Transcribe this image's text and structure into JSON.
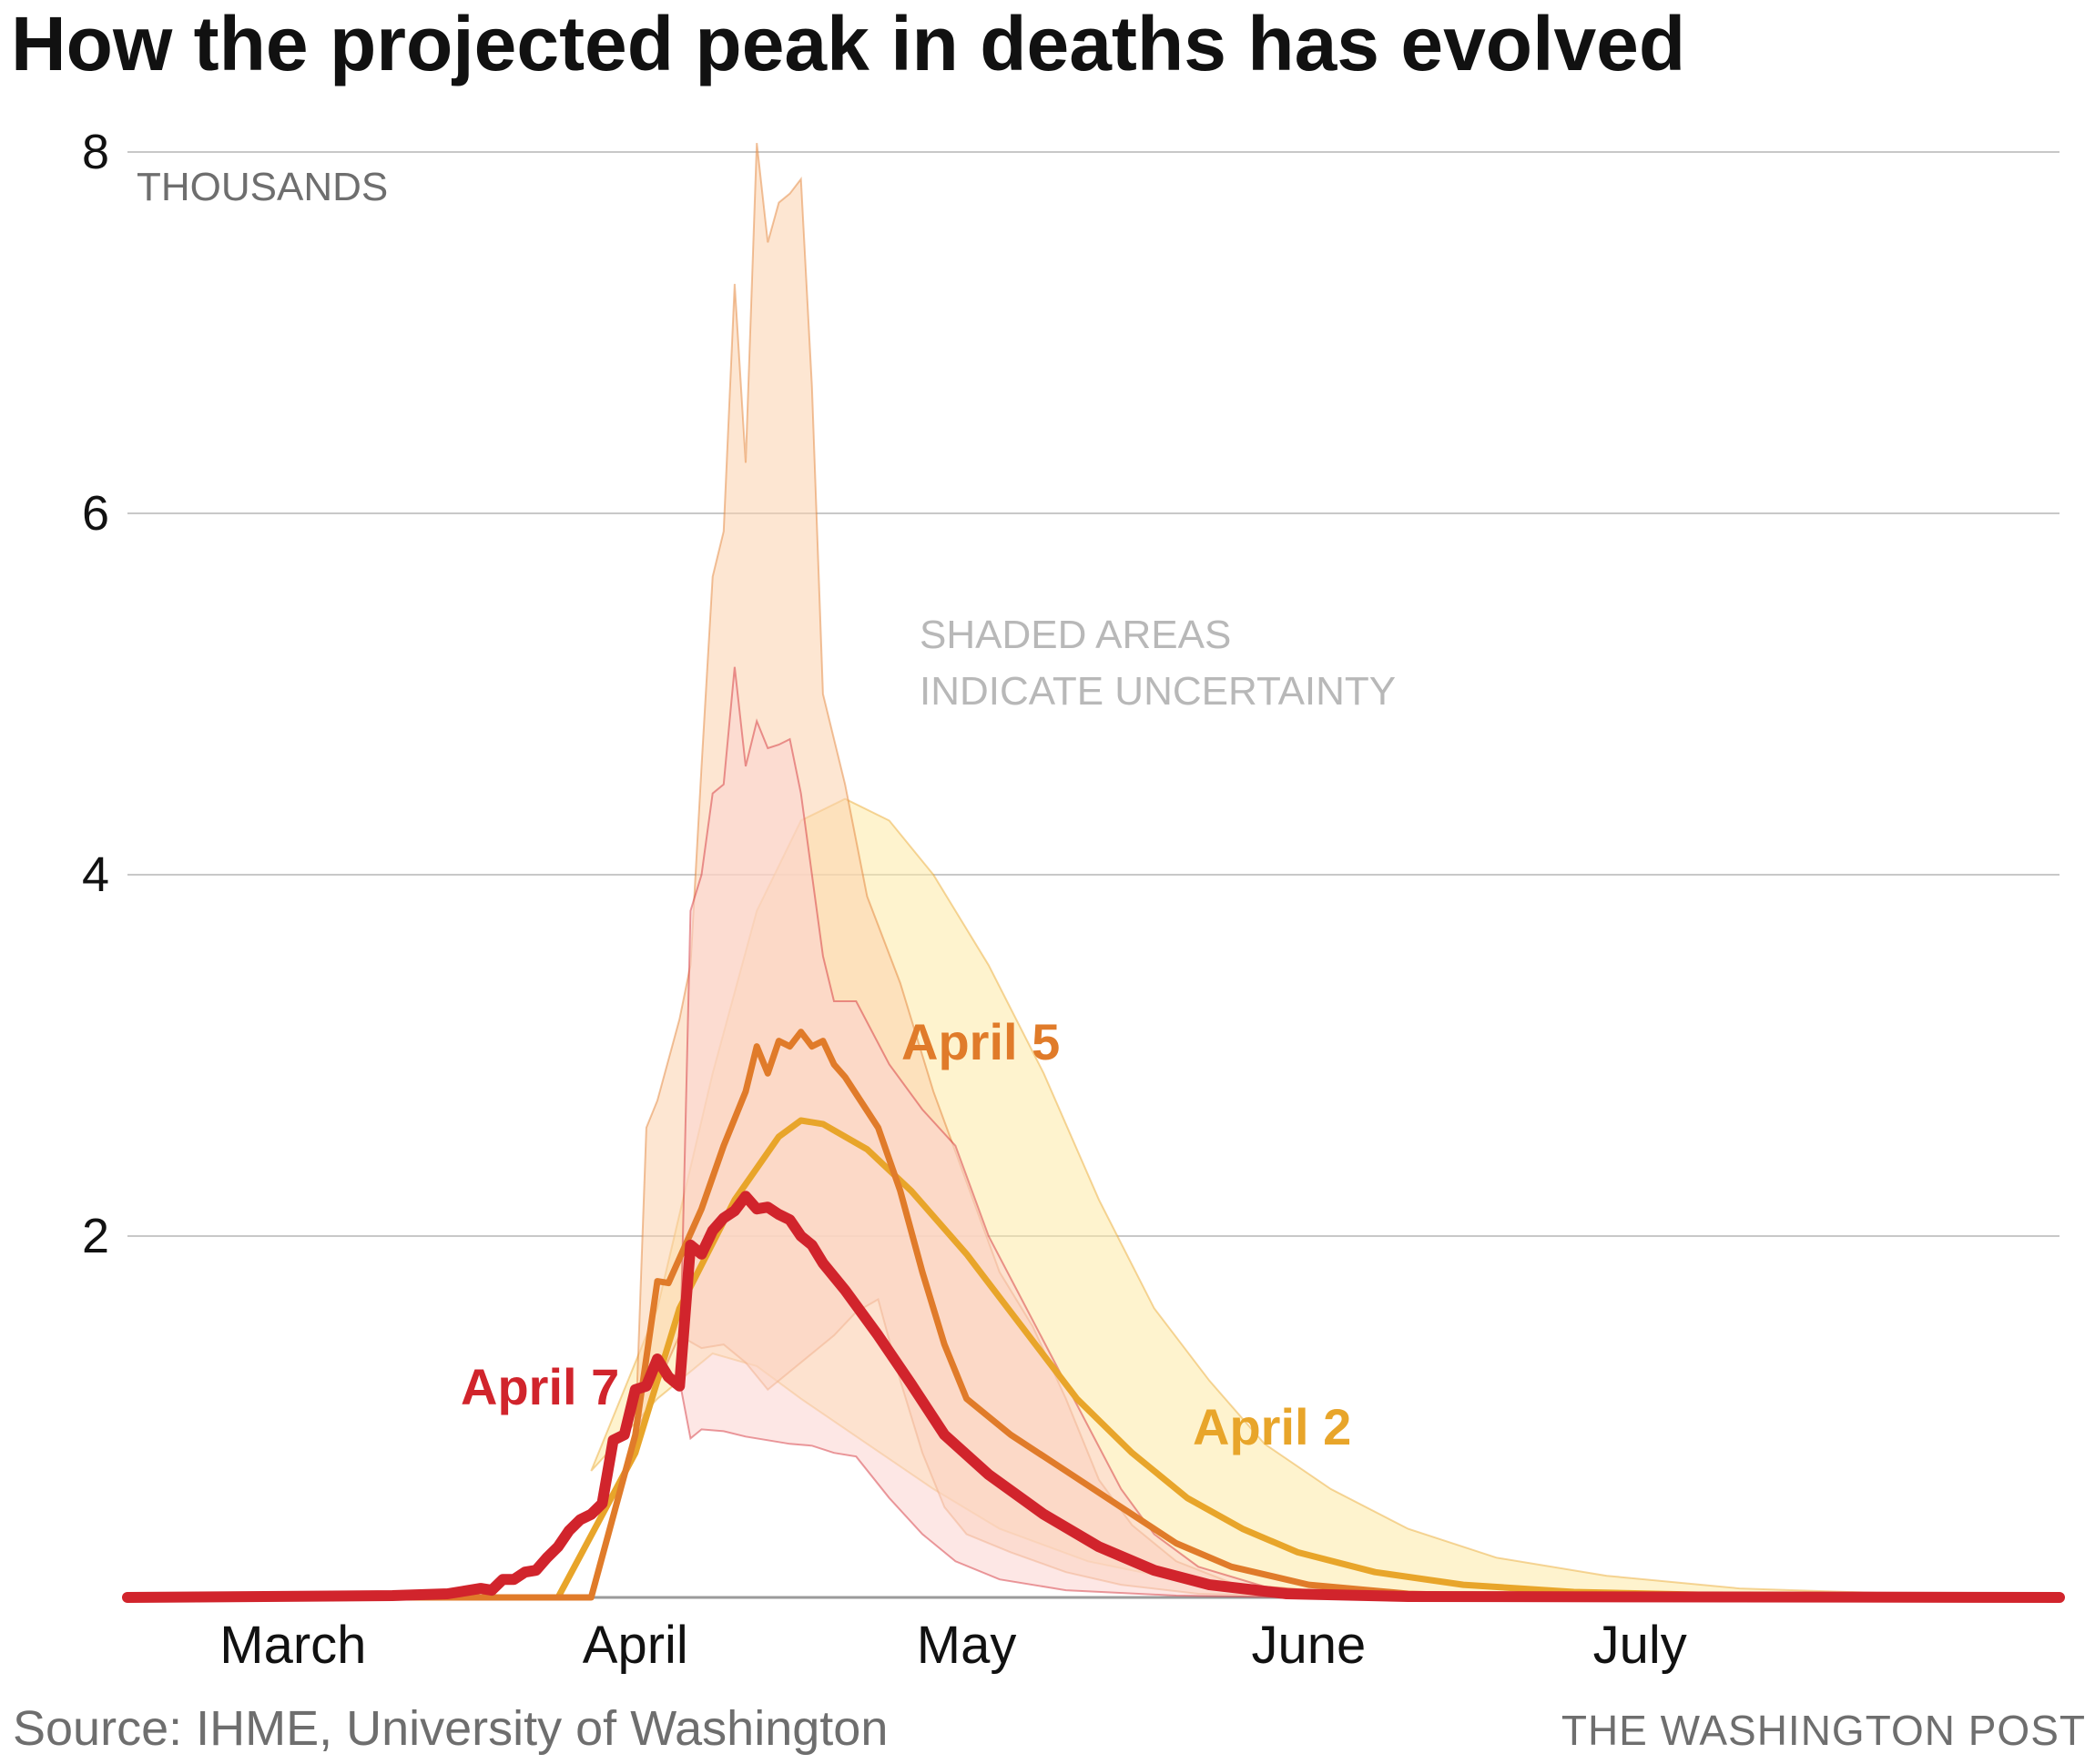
{
  "title": "How the projected peak in deaths has evolved",
  "source": "Source: IHME, University of Washington",
  "credit": "THE WASHINGTON POST",
  "chart_data": {
    "type": "line",
    "title": "How the projected peak in deaths has evolved",
    "unit_label": "THOUSANDS",
    "note_lines": [
      "SHADED AREAS",
      "INDICATE UNCERTAINTY"
    ],
    "x_axis": {
      "start": "2020-02-15",
      "end": "2020-08-08",
      "tick_labels": [
        "March",
        "April",
        "May",
        "June",
        "July"
      ],
      "tick_dates": [
        "2020-03-01",
        "2020-04-01",
        "2020-05-01",
        "2020-06-01",
        "2020-07-01"
      ]
    },
    "y_axis": {
      "ylim": [
        0,
        8
      ],
      "ticks": [
        2,
        4,
        6,
        8
      ],
      "grid": true
    },
    "colors": {
      "april2": "#e8a52a",
      "april5": "#e07b2a",
      "april7": "#d1242c",
      "band_april2": "#fde9a6",
      "band_april5": "#fcd1ad",
      "band_april7": "#fbd3cf",
      "grid": "#c8c8c8",
      "baseline": "#9a9a9a"
    },
    "series": [
      {
        "name": "April 2",
        "color": "#e8a52a",
        "points": [
          [
            "2020-02-15",
            0
          ],
          [
            "2020-03-25",
            0
          ],
          [
            "2020-04-01",
            0.8
          ],
          [
            "2020-04-05",
            1.6
          ],
          [
            "2020-04-10",
            2.2
          ],
          [
            "2020-04-14",
            2.55
          ],
          [
            "2020-04-16",
            2.64
          ],
          [
            "2020-04-18",
            2.62
          ],
          [
            "2020-04-22",
            2.48
          ],
          [
            "2020-04-26",
            2.25
          ],
          [
            "2020-05-01",
            1.9
          ],
          [
            "2020-05-06",
            1.5
          ],
          [
            "2020-05-11",
            1.1
          ],
          [
            "2020-05-16",
            0.8
          ],
          [
            "2020-05-21",
            0.55
          ],
          [
            "2020-05-26",
            0.38
          ],
          [
            "2020-05-31",
            0.25
          ],
          [
            "2020-06-07",
            0.14
          ],
          [
            "2020-06-15",
            0.07
          ],
          [
            "2020-06-25",
            0.03
          ],
          [
            "2020-07-10",
            0.01
          ],
          [
            "2020-08-08",
            0
          ]
        ],
        "band": {
          "upper": [
            [
              "2020-03-28",
              0.7
            ],
            [
              "2020-04-03",
              1.6
            ],
            [
              "2020-04-08",
              2.9
            ],
            [
              "2020-04-12",
              3.8
            ],
            [
              "2020-04-16",
              4.3
            ],
            [
              "2020-04-20",
              4.42
            ],
            [
              "2020-04-24",
              4.3
            ],
            [
              "2020-04-28",
              4.0
            ],
            [
              "2020-05-03",
              3.5
            ],
            [
              "2020-05-08",
              2.9
            ],
            [
              "2020-05-13",
              2.2
            ],
            [
              "2020-05-18",
              1.6
            ],
            [
              "2020-05-23",
              1.2
            ],
            [
              "2020-05-28",
              0.85
            ],
            [
              "2020-06-03",
              0.6
            ],
            [
              "2020-06-10",
              0.38
            ],
            [
              "2020-06-18",
              0.22
            ],
            [
              "2020-06-28",
              0.12
            ],
            [
              "2020-07-10",
              0.05
            ],
            [
              "2020-07-25",
              0.02
            ],
            [
              "2020-08-08",
              0
            ]
          ],
          "lower": [
            [
              "2020-03-28",
              0.7
            ],
            [
              "2020-04-03",
              1.1
            ],
            [
              "2020-04-08",
              1.35
            ],
            [
              "2020-04-12",
              1.28
            ],
            [
              "2020-04-16",
              1.1
            ],
            [
              "2020-04-22",
              0.85
            ],
            [
              "2020-04-28",
              0.6
            ],
            [
              "2020-05-04",
              0.38
            ],
            [
              "2020-05-12",
              0.2
            ],
            [
              "2020-05-20",
              0.1
            ],
            [
              "2020-06-01",
              0.04
            ],
            [
              "2020-06-15",
              0.01
            ],
            [
              "2020-08-08",
              0
            ]
          ]
        }
      },
      {
        "name": "April 5",
        "color": "#e07b2a",
        "points": [
          [
            "2020-02-15",
            0
          ],
          [
            "2020-03-28",
            0
          ],
          [
            "2020-04-01",
            0.9
          ],
          [
            "2020-04-03",
            1.75
          ],
          [
            "2020-04-04",
            1.74
          ],
          [
            "2020-04-07",
            2.15
          ],
          [
            "2020-04-09",
            2.5
          ],
          [
            "2020-04-11",
            2.8
          ],
          [
            "2020-04-12",
            3.05
          ],
          [
            "2020-04-13",
            2.9
          ],
          [
            "2020-04-14",
            3.08
          ],
          [
            "2020-04-15",
            3.05
          ],
          [
            "2020-04-16",
            3.13
          ],
          [
            "2020-04-17",
            3.05
          ],
          [
            "2020-04-18",
            3.08
          ],
          [
            "2020-04-19",
            2.95
          ],
          [
            "2020-04-20",
            2.88
          ],
          [
            "2020-04-23",
            2.6
          ],
          [
            "2020-04-25",
            2.25
          ],
          [
            "2020-04-27",
            1.8
          ],
          [
            "2020-04-29",
            1.4
          ],
          [
            "2020-05-01",
            1.1
          ],
          [
            "2020-05-05",
            0.9
          ],
          [
            "2020-05-10",
            0.7
          ],
          [
            "2020-05-15",
            0.5
          ],
          [
            "2020-05-20",
            0.3
          ],
          [
            "2020-05-25",
            0.17
          ],
          [
            "2020-06-01",
            0.07
          ],
          [
            "2020-06-10",
            0.02
          ],
          [
            "2020-06-20",
            0.005
          ],
          [
            "2020-08-08",
            0
          ]
        ],
        "band": {
          "upper": [
            [
              "2020-04-01",
              0.9
            ],
            [
              "2020-04-02",
              2.6
            ],
            [
              "2020-04-03",
              2.75
            ],
            [
              "2020-04-05",
              3.2
            ],
            [
              "2020-04-06",
              3.5
            ],
            [
              "2020-04-07",
              4.6
            ],
            [
              "2020-04-08",
              5.65
            ],
            [
              "2020-04-09",
              5.9
            ],
            [
              "2020-04-10",
              7.27
            ],
            [
              "2020-04-11",
              6.28
            ],
            [
              "2020-04-12",
              8.05
            ],
            [
              "2020-04-13",
              7.5
            ],
            [
              "2020-04-14",
              7.72
            ],
            [
              "2020-04-15",
              7.77
            ],
            [
              "2020-04-16",
              7.85
            ],
            [
              "2020-04-17",
              6.7
            ],
            [
              "2020-04-18",
              5.0
            ],
            [
              "2020-04-20",
              4.5
            ],
            [
              "2020-04-22",
              3.88
            ],
            [
              "2020-04-25",
              3.4
            ],
            [
              "2020-04-28",
              2.8
            ],
            [
              "2020-05-01",
              2.3
            ],
            [
              "2020-05-04",
              1.8
            ],
            [
              "2020-05-07",
              1.5
            ],
            [
              "2020-05-10",
              1.1
            ],
            [
              "2020-05-13",
              0.65
            ],
            [
              "2020-05-16",
              0.4
            ],
            [
              "2020-05-20",
              0.2
            ],
            [
              "2020-05-25",
              0.08
            ],
            [
              "2020-06-01",
              0.03
            ],
            [
              "2020-06-15",
              0.005
            ],
            [
              "2020-08-08",
              0
            ]
          ],
          "lower": [
            [
              "2020-04-01",
              0.9
            ],
            [
              "2020-04-05",
              1.45
            ],
            [
              "2020-04-07",
              1.38
            ],
            [
              "2020-04-09",
              1.4
            ],
            [
              "2020-04-11",
              1.3
            ],
            [
              "2020-04-13",
              1.15
            ],
            [
              "2020-04-15",
              1.25
            ],
            [
              "2020-04-17",
              1.35
            ],
            [
              "2020-04-19",
              1.45
            ],
            [
              "2020-04-21",
              1.58
            ],
            [
              "2020-04-23",
              1.65
            ],
            [
              "2020-04-25",
              1.2
            ],
            [
              "2020-04-27",
              0.8
            ],
            [
              "2020-04-29",
              0.5
            ],
            [
              "2020-05-01",
              0.35
            ],
            [
              "2020-05-05",
              0.25
            ],
            [
              "2020-05-10",
              0.14
            ],
            [
              "2020-05-15",
              0.07
            ],
            [
              "2020-05-22",
              0.02
            ],
            [
              "2020-06-01",
              0.005
            ],
            [
              "2020-08-08",
              0
            ]
          ]
        }
      },
      {
        "name": "April 7",
        "color": "#d1242c",
        "points": [
          [
            "2020-02-15",
            0
          ],
          [
            "2020-03-10",
            0.01
          ],
          [
            "2020-03-15",
            0.02
          ],
          [
            "2020-03-18",
            0.05
          ],
          [
            "2020-03-19",
            0.04
          ],
          [
            "2020-03-20",
            0.1
          ],
          [
            "2020-03-21",
            0.1
          ],
          [
            "2020-03-22",
            0.14
          ],
          [
            "2020-03-23",
            0.15
          ],
          [
            "2020-03-24",
            0.22
          ],
          [
            "2020-03-25",
            0.28
          ],
          [
            "2020-03-26",
            0.37
          ],
          [
            "2020-03-27",
            0.43
          ],
          [
            "2020-03-28",
            0.46
          ],
          [
            "2020-03-29",
            0.52
          ],
          [
            "2020-03-30",
            0.87
          ],
          [
            "2020-03-31",
            0.9
          ],
          [
            "2020-04-01",
            1.15
          ],
          [
            "2020-04-02",
            1.17
          ],
          [
            "2020-04-03",
            1.32
          ],
          [
            "2020-04-04",
            1.22
          ],
          [
            "2020-04-05",
            1.17
          ],
          [
            "2020-04-06",
            1.95
          ],
          [
            "2020-04-07",
            1.9
          ],
          [
            "2020-04-08",
            2.03
          ],
          [
            "2020-04-09",
            2.1
          ],
          [
            "2020-04-10",
            2.14
          ],
          [
            "2020-04-11",
            2.22
          ],
          [
            "2020-04-12",
            2.15
          ],
          [
            "2020-04-13",
            2.16
          ],
          [
            "2020-04-14",
            2.12
          ],
          [
            "2020-04-15",
            2.09
          ],
          [
            "2020-04-16",
            2.0
          ],
          [
            "2020-04-17",
            1.95
          ],
          [
            "2020-04-18",
            1.85
          ],
          [
            "2020-04-20",
            1.7
          ],
          [
            "2020-04-23",
            1.45
          ],
          [
            "2020-04-26",
            1.18
          ],
          [
            "2020-04-29",
            0.9
          ],
          [
            "2020-05-03",
            0.68
          ],
          [
            "2020-05-08",
            0.46
          ],
          [
            "2020-05-13",
            0.28
          ],
          [
            "2020-05-18",
            0.15
          ],
          [
            "2020-05-23",
            0.07
          ],
          [
            "2020-05-30",
            0.02
          ],
          [
            "2020-06-10",
            0.005
          ],
          [
            "2020-08-08",
            0
          ]
        ],
        "band": {
          "upper": [
            [
              "2020-04-05",
              1.2
            ],
            [
              "2020-04-06",
              3.8
            ],
            [
              "2020-04-07",
              4.0
            ],
            [
              "2020-04-08",
              4.45
            ],
            [
              "2020-04-09",
              4.5
            ],
            [
              "2020-04-10",
              5.15
            ],
            [
              "2020-04-11",
              4.6
            ],
            [
              "2020-04-12",
              4.85
            ],
            [
              "2020-04-13",
              4.7
            ],
            [
              "2020-04-14",
              4.72
            ],
            [
              "2020-04-15",
              4.75
            ],
            [
              "2020-04-16",
              4.45
            ],
            [
              "2020-04-18",
              3.55
            ],
            [
              "2020-04-19",
              3.3
            ],
            [
              "2020-04-21",
              3.3
            ],
            [
              "2020-04-24",
              2.95
            ],
            [
              "2020-04-27",
              2.7
            ],
            [
              "2020-04-30",
              2.5
            ],
            [
              "2020-05-03",
              2.0
            ],
            [
              "2020-05-06",
              1.65
            ],
            [
              "2020-05-09",
              1.3
            ],
            [
              "2020-05-12",
              0.95
            ],
            [
              "2020-05-15",
              0.6
            ],
            [
              "2020-05-18",
              0.35
            ],
            [
              "2020-05-22",
              0.17
            ],
            [
              "2020-05-28",
              0.06
            ],
            [
              "2020-06-05",
              0.02
            ],
            [
              "2020-06-20",
              0
            ],
            [
              "2020-08-08",
              0
            ]
          ],
          "lower": [
            [
              "2020-04-05",
              1.2
            ],
            [
              "2020-04-06",
              0.88
            ],
            [
              "2020-04-07",
              0.93
            ],
            [
              "2020-04-09",
              0.92
            ],
            [
              "2020-04-11",
              0.89
            ],
            [
              "2020-04-13",
              0.87
            ],
            [
              "2020-04-15",
              0.85
            ],
            [
              "2020-04-17",
              0.84
            ],
            [
              "2020-04-19",
              0.8
            ],
            [
              "2020-04-21",
              0.78
            ],
            [
              "2020-04-24",
              0.55
            ],
            [
              "2020-04-27",
              0.35
            ],
            [
              "2020-04-30",
              0.2
            ],
            [
              "2020-05-04",
              0.1
            ],
            [
              "2020-05-10",
              0.04
            ],
            [
              "2020-05-20",
              0.01
            ],
            [
              "2020-06-01",
              0
            ],
            [
              "2020-08-08",
              0
            ]
          ]
        }
      }
    ],
    "labels": {
      "april2": "April 2",
      "april5": "April 5",
      "april7": "April 7"
    }
  }
}
